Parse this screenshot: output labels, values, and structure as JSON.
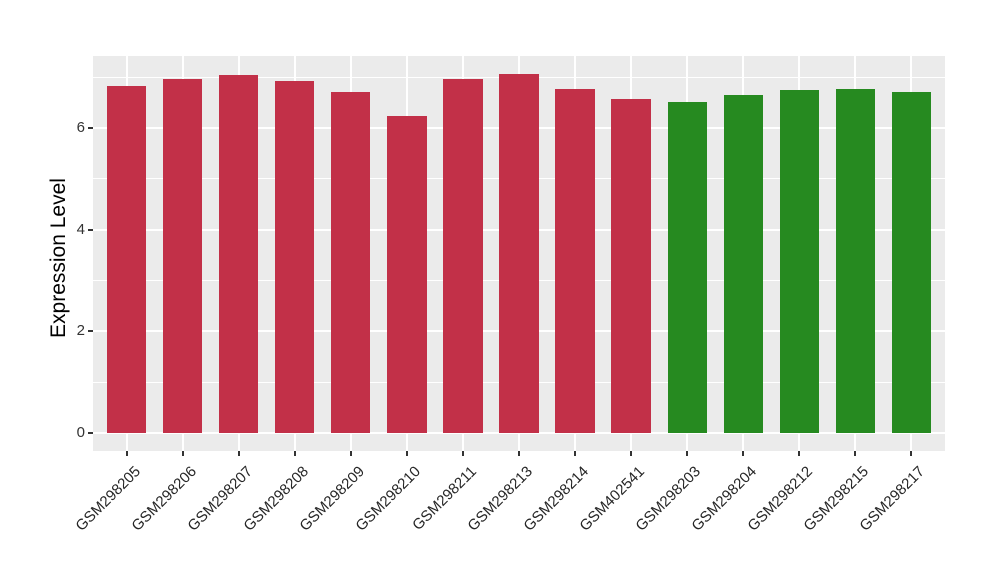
{
  "figure": {
    "background": "#FFFFFF",
    "panel_background": "#EBEBEB",
    "gridline_color": "#FFFFFF",
    "tick_mark_color": "#333333",
    "axis_text_color": "#333333",
    "axis_title_color": "#000000"
  },
  "chart_data": {
    "type": "bar",
    "title": "",
    "xlabel": "",
    "ylabel": "Expression Level",
    "ylim": [
      0,
      7.42
    ],
    "yticks": [
      0,
      2,
      4,
      6
    ],
    "yticks_minor": [
      1,
      3,
      5,
      7
    ],
    "grid": "white major and minor horizontal gridlines plus vertical gridline at each category, on gray panel",
    "legend_position": "none",
    "categories": [
      "GSM298205",
      "GSM298206",
      "GSM298207",
      "GSM298208",
      "GSM298209",
      "GSM298210",
      "GSM298211",
      "GSM298213",
      "GSM298214",
      "GSM402541",
      "GSM298203",
      "GSM298204",
      "GSM298212",
      "GSM298215",
      "GSM298217"
    ],
    "series": [
      {
        "name": "Expression Level",
        "values": [
          6.83,
          6.97,
          7.04,
          6.93,
          6.71,
          6.23,
          6.97,
          7.06,
          6.77,
          6.58,
          6.52,
          6.66,
          6.76,
          6.77,
          6.71
        ]
      }
    ],
    "bar_colors": [
      "#C23048",
      "#C23048",
      "#C23048",
      "#C23048",
      "#C23048",
      "#C23048",
      "#C23048",
      "#C23048",
      "#C23048",
      "#C23048",
      "#268A20",
      "#268A20",
      "#268A20",
      "#268A20",
      "#268A20"
    ],
    "group_colors": {
      "red_group": "#C23048",
      "green_group": "#268A20"
    }
  }
}
